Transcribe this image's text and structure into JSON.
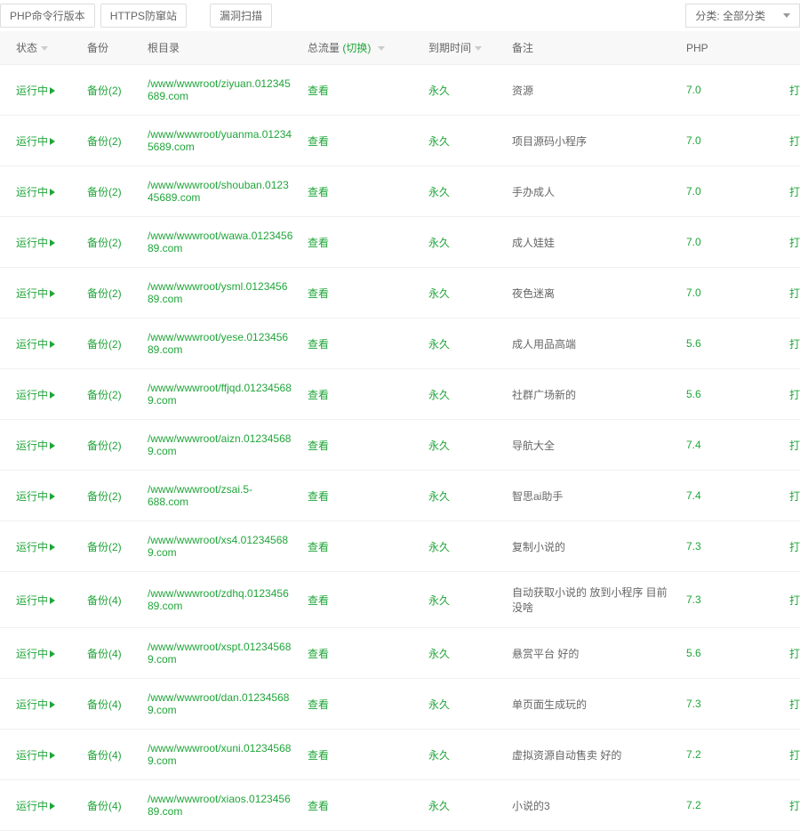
{
  "toolbar": {
    "btn_php_cli": "PHP命令行版本",
    "btn_https_defense": "HTTPS防窜站",
    "btn_vuln_scan": "漏洞扫描",
    "category_label": "分类: 全部分类"
  },
  "columns": {
    "status": "状态",
    "backup": "备份",
    "root": "根目录",
    "traffic_prefix": "总流量",
    "traffic_switch": "(切换)",
    "expire": "到期时间",
    "note": "备注",
    "php": "PHP"
  },
  "common": {
    "status_running": "运行中",
    "view": "查看",
    "forever": "永久",
    "op": "打"
  },
  "rows": [
    {
      "backup": "备份(2)",
      "root": "/www/wwwroot/ziyuan.012345689.com",
      "note": "资源",
      "php": "7.0"
    },
    {
      "backup": "备份(2)",
      "root": "/www/wwwroot/yuanma.012345689.com",
      "note": "项目源码小程序",
      "php": "7.0"
    },
    {
      "backup": "备份(2)",
      "root": "/www/wwwroot/shouban.012345689.com",
      "note": "手办成人",
      "php": "7.0"
    },
    {
      "backup": "备份(2)",
      "root": "/www/wwwroot/wawa.012345689.com",
      "note": "成人娃娃",
      "php": "7.0"
    },
    {
      "backup": "备份(2)",
      "root": "/www/wwwroot/ysml.012345689.com",
      "note": "夜色迷离",
      "php": "7.0"
    },
    {
      "backup": "备份(2)",
      "root": "/www/wwwroot/yese.012345689.com",
      "note": "成人用品高端",
      "php": "5.6"
    },
    {
      "backup": "备份(2)",
      "root": "/www/wwwroot/ffjqd.012345689.com",
      "note": "社群广场新的",
      "php": "5.6"
    },
    {
      "backup": "备份(2)",
      "root": "/www/wwwroot/aizn.012345689.com",
      "note": "导航大全",
      "php": "7.4"
    },
    {
      "backup": "备份(2)",
      "root": "/www/wwwroot/zsai.5-688.com",
      "note": "智思ai助手",
      "php": "7.4"
    },
    {
      "backup": "备份(2)",
      "root": "/www/wwwroot/xs4.012345689.com",
      "note": "复制小说的",
      "php": "7.3"
    },
    {
      "backup": "备份(4)",
      "root": "/www/wwwroot/zdhq.012345689.com",
      "note": "自动获取小说的   放到小程序   目前没啥",
      "php": "7.3"
    },
    {
      "backup": "备份(4)",
      "root": "/www/wwwroot/xspt.012345689.com",
      "note": "悬赏平台               好的",
      "php": "5.6"
    },
    {
      "backup": "备份(4)",
      "root": "/www/wwwroot/dan.012345689.com",
      "note": "单页面生成玩的",
      "php": "7.3"
    },
    {
      "backup": "备份(4)",
      "root": "/www/wwwroot/xuni.012345689.com",
      "note": "虚拟资源自动售卖    好的",
      "php": "7.2"
    },
    {
      "backup": "备份(4)",
      "root": "/www/wwwroot/xiaos.012345689.com",
      "note": "小说的3",
      "php": "7.2"
    }
  ],
  "colors": {
    "link_green": "#20a53a",
    "text": "#666666",
    "border": "#eeeeee",
    "header_bg": "#f8f8f8"
  }
}
